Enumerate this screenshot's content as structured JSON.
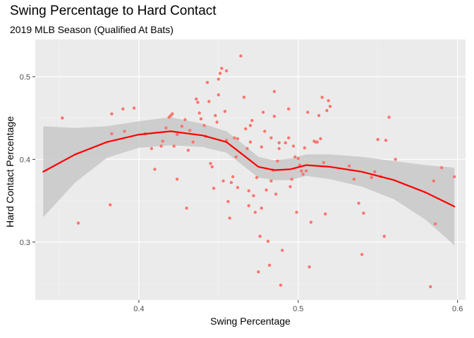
{
  "chart_data": {
    "type": "scatter",
    "title": "Swing Percentage to Hard Contact",
    "subtitle": "2019 MLB Season (Qualified At Bats)",
    "xlabel": "Swing Percentage",
    "ylabel": "Hard Contact Percentage",
    "xlim": [
      0.335,
      0.605
    ],
    "ylim": [
      0.23,
      0.545
    ],
    "x_ticks": [
      0.4,
      0.5,
      0.6
    ],
    "y_ticks": [
      0.3,
      0.4,
      0.5
    ],
    "x_tick_labels": [
      "0.4",
      "0.5",
      "0.6"
    ],
    "y_tick_labels": [
      "0.3",
      "0.4",
      "0.5"
    ],
    "grid": true,
    "colors": {
      "points": "#f8766d",
      "smooth": "#ff0000",
      "band": "#c8c8c8",
      "panel": "#ebebeb"
    },
    "points": [
      [
        0.352,
        0.45
      ],
      [
        0.362,
        0.323
      ],
      [
        0.382,
        0.345
      ],
      [
        0.383,
        0.431
      ],
      [
        0.383,
        0.455
      ],
      [
        0.39,
        0.461
      ],
      [
        0.397,
        0.462
      ],
      [
        0.391,
        0.434
      ],
      [
        0.404,
        0.431
      ],
      [
        0.408,
        0.413
      ],
      [
        0.41,
        0.388
      ],
      [
        0.414,
        0.416
      ],
      [
        0.415,
        0.422
      ],
      [
        0.417,
        0.438
      ],
      [
        0.419,
        0.451
      ],
      [
        0.42,
        0.453
      ],
      [
        0.421,
        0.455
      ],
      [
        0.422,
        0.416
      ],
      [
        0.424,
        0.376
      ],
      [
        0.424,
        0.43
      ],
      [
        0.427,
        0.44
      ],
      [
        0.429,
        0.448
      ],
      [
        0.43,
        0.341
      ],
      [
        0.431,
        0.411
      ],
      [
        0.432,
        0.435
      ],
      [
        0.434,
        0.421
      ],
      [
        0.436,
        0.473
      ],
      [
        0.437,
        0.469
      ],
      [
        0.438,
        0.456
      ],
      [
        0.439,
        0.449
      ],
      [
        0.441,
        0.441
      ],
      [
        0.442,
        0.428
      ],
      [
        0.443,
        0.493
      ],
      [
        0.444,
        0.47
      ],
      [
        0.445,
        0.395
      ],
      [
        0.446,
        0.391
      ],
      [
        0.447,
        0.365
      ],
      [
        0.448,
        0.453
      ],
      [
        0.449,
        0.445
      ],
      [
        0.45,
        0.478
      ],
      [
        0.45,
        0.497
      ],
      [
        0.451,
        0.504
      ],
      [
        0.452,
        0.51
      ],
      [
        0.453,
        0.374
      ],
      [
        0.454,
        0.458
      ],
      [
        0.455,
        0.507
      ],
      [
        0.455,
        0.423
      ],
      [
        0.456,
        0.349
      ],
      [
        0.457,
        0.329
      ],
      [
        0.458,
        0.372
      ],
      [
        0.459,
        0.379
      ],
      [
        0.46,
        0.426
      ],
      [
        0.461,
        0.403
      ],
      [
        0.462,
        0.366
      ],
      [
        0.462,
        0.425
      ],
      [
        0.464,
        0.525
      ],
      [
        0.466,
        0.475
      ],
      [
        0.467,
        0.437
      ],
      [
        0.468,
        0.413
      ],
      [
        0.469,
        0.362
      ],
      [
        0.469,
        0.344
      ],
      [
        0.47,
        0.421
      ],
      [
        0.47,
        0.441
      ],
      [
        0.471,
        0.447
      ],
      [
        0.472,
        0.356
      ],
      [
        0.473,
        0.336
      ],
      [
        0.474,
        0.378
      ],
      [
        0.475,
        0.264
      ],
      [
        0.476,
        0.307
      ],
      [
        0.477,
        0.341
      ],
      [
        0.477,
        0.415
      ],
      [
        0.478,
        0.457
      ],
      [
        0.479,
        0.434
      ],
      [
        0.48,
        0.363
      ],
      [
        0.481,
        0.301
      ],
      [
        0.482,
        0.272
      ],
      [
        0.483,
        0.426
      ],
      [
        0.483,
        0.374
      ],
      [
        0.484,
        0.387
      ],
      [
        0.485,
        0.482
      ],
      [
        0.485,
        0.452
      ],
      [
        0.486,
        0.358
      ],
      [
        0.487,
        0.398
      ],
      [
        0.488,
        0.413
      ],
      [
        0.488,
        0.42
      ],
      [
        0.489,
        0.248
      ],
      [
        0.49,
        0.29
      ],
      [
        0.492,
        0.42
      ],
      [
        0.494,
        0.461
      ],
      [
        0.494,
        0.426
      ],
      [
        0.495,
        0.367
      ],
      [
        0.496,
        0.376
      ],
      [
        0.497,
        0.416
      ],
      [
        0.498,
        0.403
      ],
      [
        0.499,
        0.336
      ],
      [
        0.5,
        0.401
      ],
      [
        0.501,
        0.393
      ],
      [
        0.502,
        0.386
      ],
      [
        0.503,
        0.382
      ],
      [
        0.504,
        0.414
      ],
      [
        0.505,
        0.386
      ],
      [
        0.506,
        0.457
      ],
      [
        0.507,
        0.27
      ],
      [
        0.508,
        0.324
      ],
      [
        0.51,
        0.422
      ],
      [
        0.511,
        0.421
      ],
      [
        0.512,
        0.421
      ],
      [
        0.513,
        0.453
      ],
      [
        0.514,
        0.425
      ],
      [
        0.515,
        0.475
      ],
      [
        0.516,
        0.396
      ],
      [
        0.517,
        0.334
      ],
      [
        0.518,
        0.459
      ],
      [
        0.519,
        0.471
      ],
      [
        0.52,
        0.464
      ],
      [
        0.532,
        0.392
      ],
      [
        0.535,
        0.376
      ],
      [
        0.538,
        0.347
      ],
      [
        0.54,
        0.285
      ],
      [
        0.541,
        0.335
      ],
      [
        0.546,
        0.378
      ],
      [
        0.548,
        0.385
      ],
      [
        0.55,
        0.424
      ],
      [
        0.552,
        0.379
      ],
      [
        0.554,
        0.307
      ],
      [
        0.555,
        0.423
      ],
      [
        0.557,
        0.451
      ],
      [
        0.561,
        0.4
      ],
      [
        0.583,
        0.246
      ],
      [
        0.585,
        0.374
      ],
      [
        0.586,
        0.322
      ],
      [
        0.59,
        0.39
      ],
      [
        0.598,
        0.379
      ]
    ],
    "smooth_line": [
      [
        0.34,
        0.385
      ],
      [
        0.36,
        0.406
      ],
      [
        0.38,
        0.421
      ],
      [
        0.4,
        0.43
      ],
      [
        0.42,
        0.434
      ],
      [
        0.44,
        0.429
      ],
      [
        0.455,
        0.421
      ],
      [
        0.465,
        0.406
      ],
      [
        0.475,
        0.391
      ],
      [
        0.485,
        0.387
      ],
      [
        0.495,
        0.388
      ],
      [
        0.505,
        0.393
      ],
      [
        0.52,
        0.391
      ],
      [
        0.54,
        0.385
      ],
      [
        0.56,
        0.375
      ],
      [
        0.58,
        0.36
      ],
      [
        0.598,
        0.343
      ]
    ],
    "band_upper": [
      [
        0.34,
        0.44
      ],
      [
        0.36,
        0.438
      ],
      [
        0.38,
        0.44
      ],
      [
        0.4,
        0.446
      ],
      [
        0.42,
        0.451
      ],
      [
        0.44,
        0.443
      ],
      [
        0.455,
        0.434
      ],
      [
        0.465,
        0.419
      ],
      [
        0.475,
        0.403
      ],
      [
        0.485,
        0.399
      ],
      [
        0.495,
        0.401
      ],
      [
        0.505,
        0.406
      ],
      [
        0.52,
        0.406
      ],
      [
        0.54,
        0.403
      ],
      [
        0.56,
        0.398
      ],
      [
        0.58,
        0.393
      ],
      [
        0.598,
        0.39
      ]
    ],
    "band_lower": [
      [
        0.34,
        0.33
      ],
      [
        0.36,
        0.372
      ],
      [
        0.38,
        0.402
      ],
      [
        0.4,
        0.414
      ],
      [
        0.42,
        0.417
      ],
      [
        0.44,
        0.415
      ],
      [
        0.455,
        0.408
      ],
      [
        0.465,
        0.393
      ],
      [
        0.475,
        0.378
      ],
      [
        0.485,
        0.375
      ],
      [
        0.495,
        0.375
      ],
      [
        0.505,
        0.38
      ],
      [
        0.52,
        0.376
      ],
      [
        0.54,
        0.367
      ],
      [
        0.56,
        0.352
      ],
      [
        0.58,
        0.327
      ],
      [
        0.598,
        0.296
      ]
    ]
  }
}
